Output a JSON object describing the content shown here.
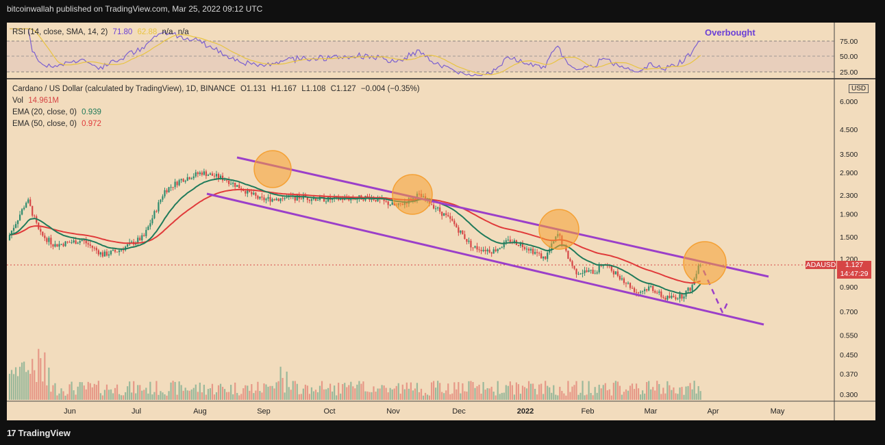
{
  "header": {
    "published": "bitcoinwallah published on TradingView.com, Mar 25, 2022 09:12 UTC"
  },
  "footer": {
    "brand": "TradingView",
    "logo_glyph": "17"
  },
  "rsi": {
    "label": "RSI (14, close, SMA, 14, 2)",
    "value": "71.80",
    "sma_value": "62.88",
    "na1": "n/a",
    "na2": "n/a",
    "annotation": "Overbought",
    "ticks": [
      "75.00",
      "50.00",
      "25.00"
    ]
  },
  "main": {
    "title": "Cardano / US Dollar (calculated by TradingView), 1D, BINANCE",
    "ohlc": {
      "o": "O1.131",
      "h": "H1.167",
      "l": "L1.108",
      "c": "C1.127",
      "chg": "−0.004 (−0.35%)"
    },
    "vol_label": "Vol",
    "vol_value": "14.961M",
    "ema20_label": "EMA (20, close, 0)",
    "ema20_value": "0.939",
    "ema50_label": "EMA (50, close, 0)",
    "ema50_value": "0.972",
    "currency": "USD",
    "symbol_tag": "ADAUSD",
    "price_tag": "1.127",
    "countdown": "14:47:29"
  },
  "colors": {
    "background": "#f2dcbd",
    "up": "#2e8b6e",
    "down": "#d64545",
    "rsi": "#7a5fd0",
    "rsi_sma": "#e8c441",
    "ema20": "#1f7a5a",
    "ema50": "#e03a3a",
    "channel": "#9b3fc9",
    "circle": "#f5a033"
  },
  "chart_data": {
    "type": "candlestick",
    "title": "Cardano / US Dollar (calculated by TradingView), 1D, BINANCE",
    "y_scale": "log",
    "y_ticks": [
      "6.000",
      "4.500",
      "3.500",
      "2.900",
      "2.300",
      "1.900",
      "1.500",
      "1.200",
      "0.900",
      "0.700",
      "0.550",
      "0.450",
      "0.370",
      "0.300"
    ],
    "x_ticks": [
      "Jun",
      "Jul",
      "Aug",
      "Sep",
      "Oct",
      "Nov",
      "Dec",
      "2022",
      "Feb",
      "Mar",
      "Apr",
      "May"
    ],
    "approx_close_by_month": [
      {
        "month": "May 2021",
        "close": 1.45
      },
      {
        "month": "Jun 2021",
        "close": 1.4
      },
      {
        "month": "Jul 2021",
        "close": 1.35
      },
      {
        "month": "Aug 2021",
        "close": 2.6
      },
      {
        "month": "Sep 2021",
        "close": 2.2
      },
      {
        "month": "Oct 2021",
        "close": 2.1
      },
      {
        "month": "Nov 2021",
        "close": 1.6
      },
      {
        "month": "Dec 2021",
        "close": 1.3
      },
      {
        "month": "Jan 2022",
        "close": 1.05
      },
      {
        "month": "Feb 2022",
        "close": 0.95
      },
      {
        "month": "Mar 2022",
        "close": 1.127
      }
    ],
    "last_price": 1.127,
    "ema20": 0.939,
    "ema50": 0.972,
    "rsi": 71.8,
    "rsi_overbought": 70
  }
}
